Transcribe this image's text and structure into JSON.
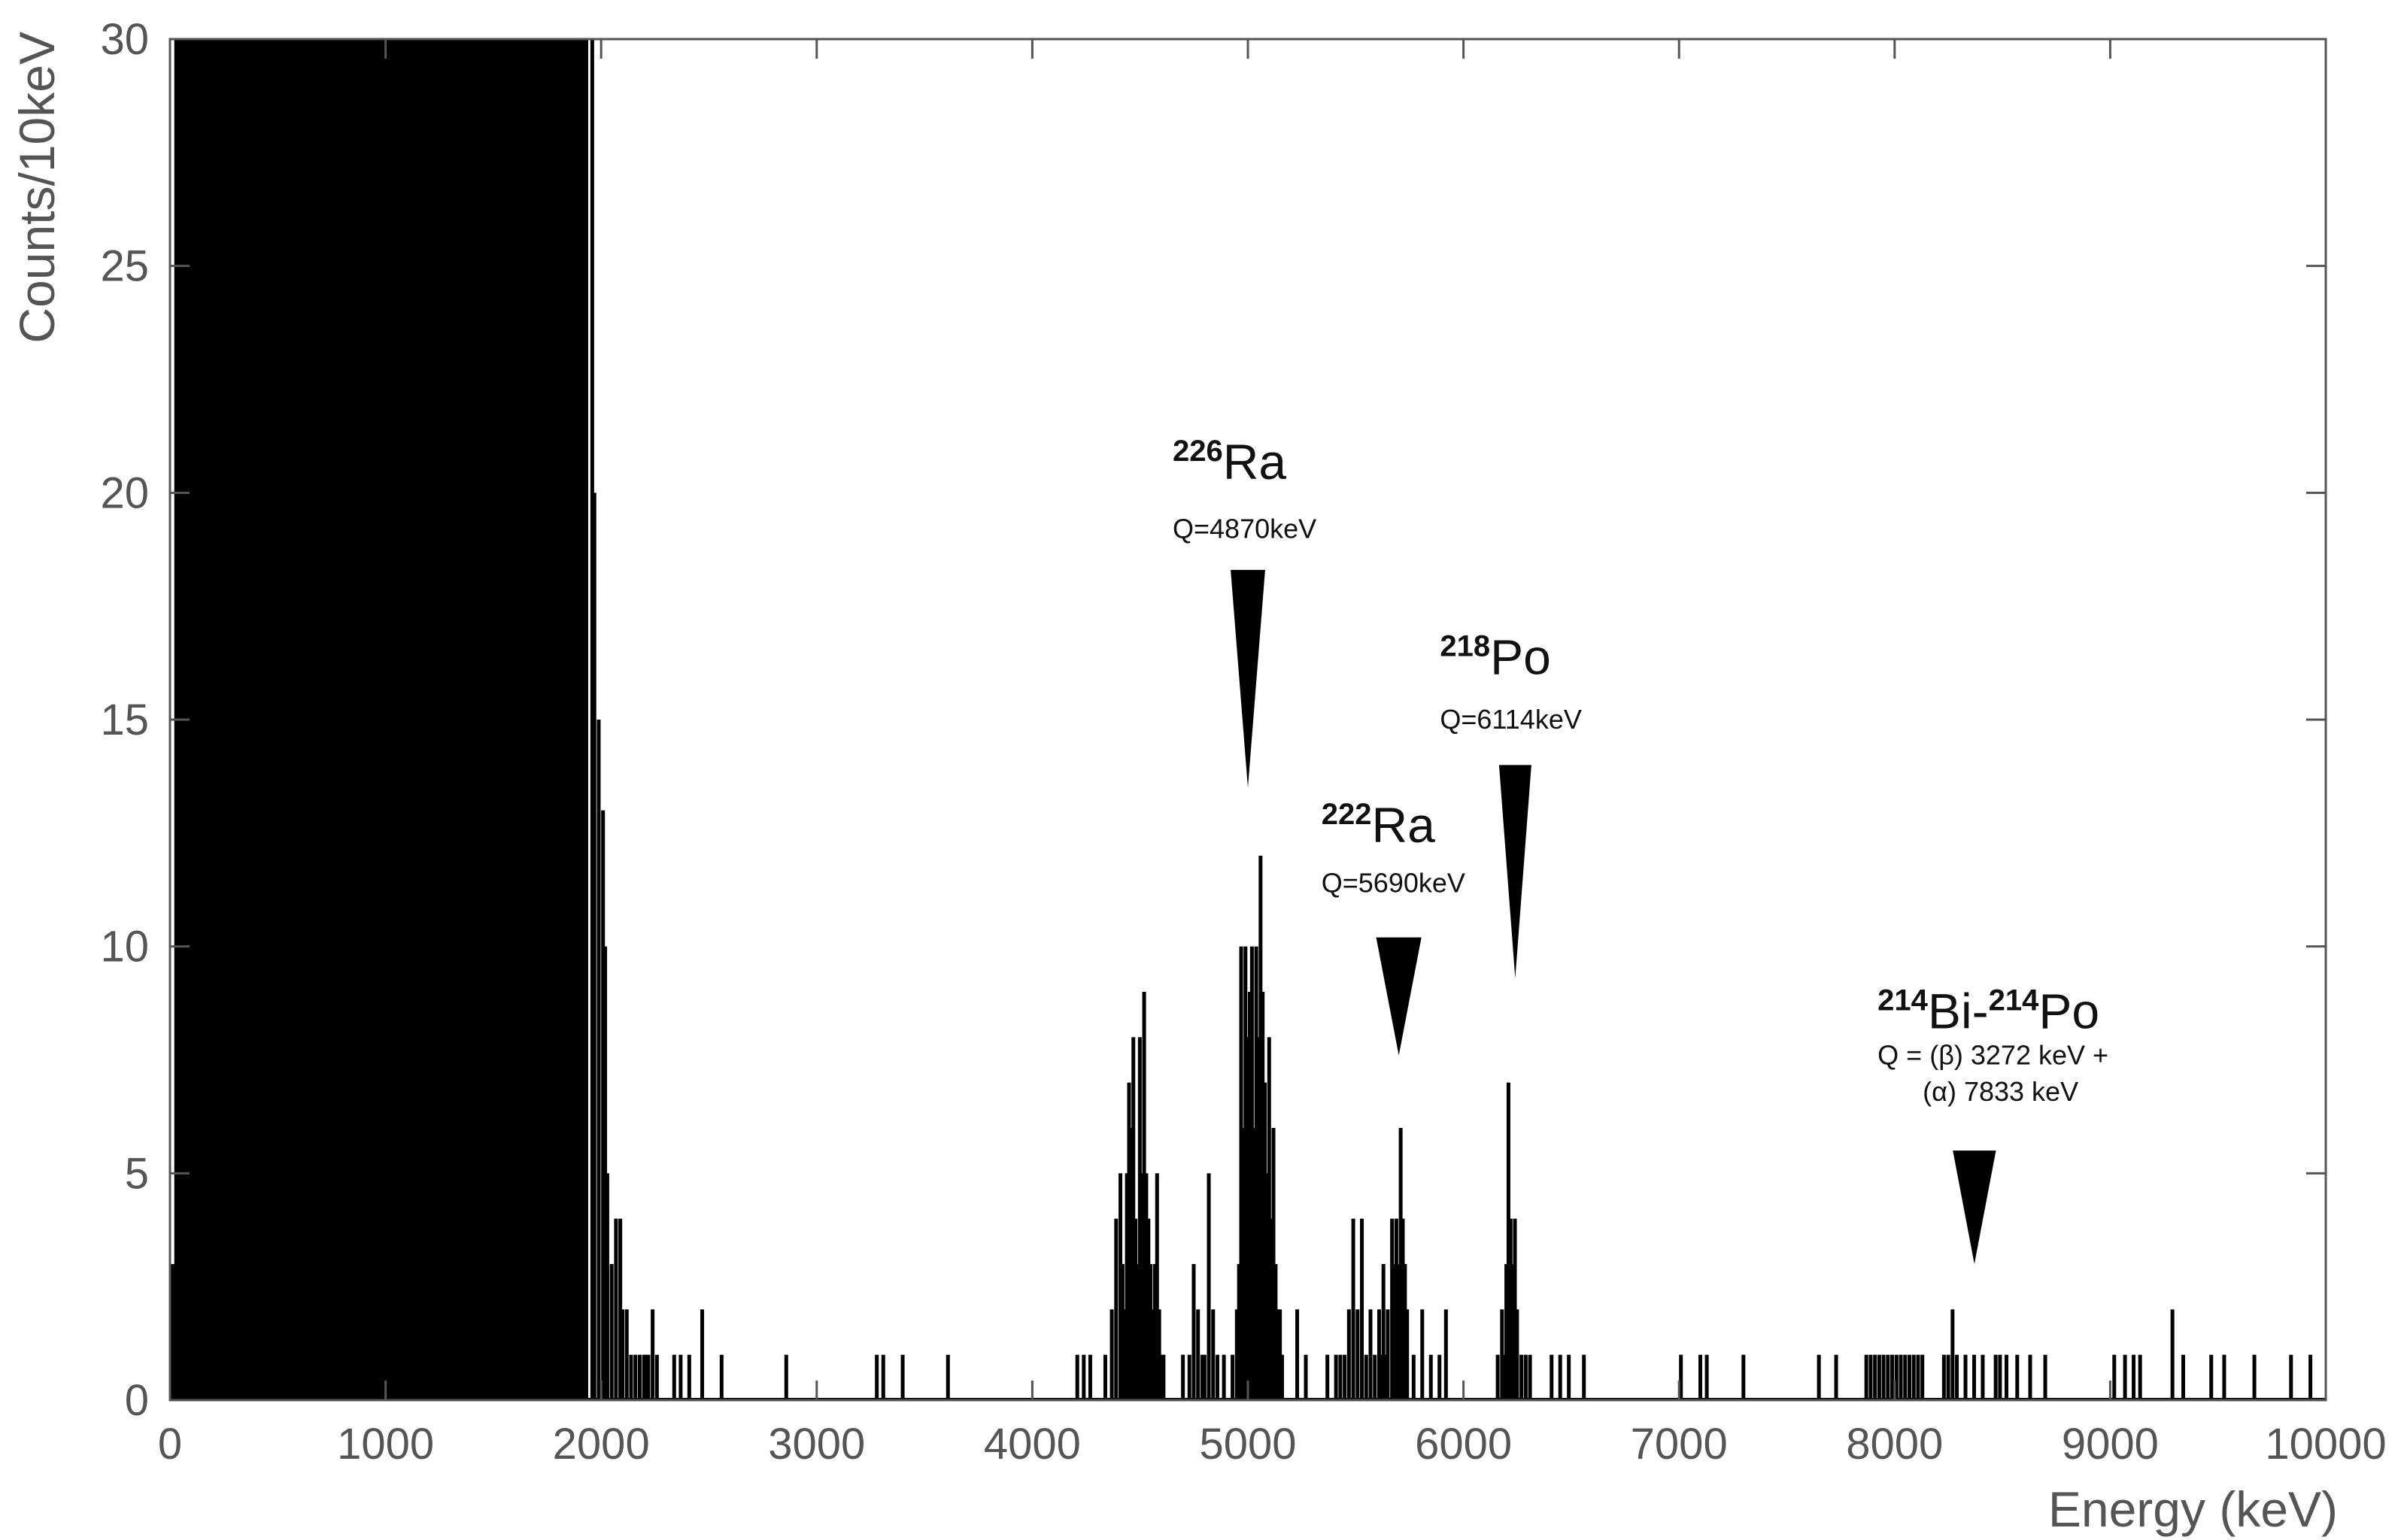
{
  "chart_data": {
    "type": "bar",
    "title": "",
    "xlabel": "Energy (keV)",
    "ylabel": "Counts/10keV",
    "xlim": [
      0,
      10000
    ],
    "ylim": [
      0,
      30
    ],
    "bin_width_keV": 10,
    "xticks": [
      0,
      1000,
      2000,
      3000,
      4000,
      5000,
      6000,
      7000,
      8000,
      9000,
      10000
    ],
    "yticks": [
      0,
      5,
      10,
      15,
      20,
      25,
      30
    ],
    "grid": false,
    "legend": "none",
    "color": "#000000",
    "saturated_region": {
      "x_start": 20,
      "x_end": 1940,
      "value": 30
    },
    "bins": [
      [
        0,
        3
      ],
      [
        10,
        3
      ],
      [
        1950,
        30
      ],
      [
        1960,
        20
      ],
      [
        1980,
        15
      ],
      [
        2000,
        13
      ],
      [
        2010,
        10
      ],
      [
        2020,
        5
      ],
      [
        2040,
        3
      ],
      [
        2060,
        4
      ],
      [
        2080,
        4
      ],
      [
        2090,
        2
      ],
      [
        2110,
        2
      ],
      [
        2130,
        1
      ],
      [
        2150,
        1
      ],
      [
        2170,
        1
      ],
      [
        2190,
        1
      ],
      [
        2200,
        1
      ],
      [
        2210,
        1
      ],
      [
        2230,
        2
      ],
      [
        2250,
        1
      ],
      [
        2330,
        1
      ],
      [
        2360,
        1
      ],
      [
        2400,
        1
      ],
      [
        2460,
        2
      ],
      [
        2550,
        1
      ],
      [
        2850,
        1
      ],
      [
        3270,
        1
      ],
      [
        3300,
        1
      ],
      [
        3390,
        1
      ],
      [
        3600,
        1
      ],
      [
        4200,
        1
      ],
      [
        4230,
        1
      ],
      [
        4260,
        1
      ],
      [
        4330,
        1
      ],
      [
        4360,
        2
      ],
      [
        4380,
        4
      ],
      [
        4400,
        5
      ],
      [
        4410,
        3
      ],
      [
        4420,
        2
      ],
      [
        4430,
        5
      ],
      [
        4440,
        7
      ],
      [
        4450,
        6
      ],
      [
        4460,
        8
      ],
      [
        4470,
        4
      ],
      [
        4480,
        3
      ],
      [
        4490,
        8
      ],
      [
        4500,
        5
      ],
      [
        4510,
        9
      ],
      [
        4520,
        5
      ],
      [
        4530,
        4
      ],
      [
        4540,
        3
      ],
      [
        4550,
        2
      ],
      [
        4560,
        3
      ],
      [
        4570,
        5
      ],
      [
        4580,
        2
      ],
      [
        4590,
        1
      ],
      [
        4600,
        1
      ],
      [
        4690,
        1
      ],
      [
        4720,
        1
      ],
      [
        4740,
        3
      ],
      [
        4760,
        2
      ],
      [
        4780,
        1
      ],
      [
        4790,
        1
      ],
      [
        4810,
        5
      ],
      [
        4830,
        2
      ],
      [
        4850,
        1
      ],
      [
        4880,
        1
      ],
      [
        4920,
        1
      ],
      [
        4940,
        2
      ],
      [
        4950,
        3
      ],
      [
        4960,
        10
      ],
      [
        4970,
        6
      ],
      [
        4980,
        10
      ],
      [
        4990,
        8
      ],
      [
        5000,
        9
      ],
      [
        5010,
        10
      ],
      [
        5020,
        6
      ],
      [
        5030,
        10
      ],
      [
        5040,
        8
      ],
      [
        5050,
        12
      ],
      [
        5060,
        9
      ],
      [
        5070,
        7
      ],
      [
        5080,
        5
      ],
      [
        5090,
        8
      ],
      [
        5100,
        4
      ],
      [
        5110,
        6
      ],
      [
        5120,
        3
      ],
      [
        5130,
        2
      ],
      [
        5140,
        2
      ],
      [
        5150,
        1
      ],
      [
        5220,
        2
      ],
      [
        5260,
        1
      ],
      [
        5360,
        1
      ],
      [
        5400,
        1
      ],
      [
        5420,
        1
      ],
      [
        5440,
        1
      ],
      [
        5460,
        2
      ],
      [
        5480,
        4
      ],
      [
        5500,
        2
      ],
      [
        5520,
        4
      ],
      [
        5540,
        1
      ],
      [
        5560,
        2
      ],
      [
        5580,
        1
      ],
      [
        5600,
        2
      ],
      [
        5610,
        1
      ],
      [
        5620,
        3
      ],
      [
        5630,
        1
      ],
      [
        5640,
        2
      ],
      [
        5660,
        4
      ],
      [
        5670,
        3
      ],
      [
        5680,
        4
      ],
      [
        5690,
        3
      ],
      [
        5700,
        6
      ],
      [
        5710,
        4
      ],
      [
        5720,
        3
      ],
      [
        5730,
        2
      ],
      [
        5760,
        1
      ],
      [
        5800,
        2
      ],
      [
        5840,
        1
      ],
      [
        5880,
        1
      ],
      [
        5910,
        2
      ],
      [
        6150,
        1
      ],
      [
        6170,
        2
      ],
      [
        6180,
        1
      ],
      [
        6190,
        3
      ],
      [
        6200,
        7
      ],
      [
        6210,
        4
      ],
      [
        6220,
        3
      ],
      [
        6230,
        4
      ],
      [
        6240,
        2
      ],
      [
        6260,
        1
      ],
      [
        6280,
        1
      ],
      [
        6300,
        1
      ],
      [
        6400,
        1
      ],
      [
        6440,
        1
      ],
      [
        6480,
        1
      ],
      [
        6550,
        1
      ],
      [
        7000,
        1
      ],
      [
        7090,
        1
      ],
      [
        7120,
        1
      ],
      [
        7290,
        1
      ],
      [
        7640,
        1
      ],
      [
        7720,
        1
      ],
      [
        7860,
        1
      ],
      [
        7880,
        1
      ],
      [
        7900,
        1
      ],
      [
        7920,
        1
      ],
      [
        7940,
        1
      ],
      [
        7960,
        1
      ],
      [
        7980,
        1
      ],
      [
        8000,
        1
      ],
      [
        8020,
        1
      ],
      [
        8040,
        1
      ],
      [
        8060,
        1
      ],
      [
        8080,
        1
      ],
      [
        8100,
        1
      ],
      [
        8120,
        1
      ],
      [
        8220,
        1
      ],
      [
        8240,
        1
      ],
      [
        8260,
        2
      ],
      [
        8280,
        1
      ],
      [
        8320,
        1
      ],
      [
        8360,
        1
      ],
      [
        8400,
        1
      ],
      [
        8460,
        1
      ],
      [
        8480,
        1
      ],
      [
        8510,
        1
      ],
      [
        8560,
        1
      ],
      [
        8620,
        1
      ],
      [
        8690,
        1
      ],
      [
        9010,
        1
      ],
      [
        9060,
        1
      ],
      [
        9100,
        1
      ],
      [
        9130,
        1
      ],
      [
        9280,
        2
      ],
      [
        9330,
        1
      ],
      [
        9460,
        1
      ],
      [
        9520,
        1
      ],
      [
        9660,
        1
      ],
      [
        9830,
        1
      ],
      [
        9920,
        1
      ]
    ],
    "annotations": [
      {
        "isotope_sup": "226",
        "isotope": "Ra",
        "q": "Q=4870keV",
        "x": 5000,
        "y_text": 20.3,
        "y_q": 19,
        "arrow": {
          "x": 5000,
          "y_top": 18.3,
          "y_tip": 13.5,
          "width_keV": 160
        }
      },
      {
        "isotope_sup": "218",
        "isotope": "Po",
        "q": "Q=6114keV",
        "x": 6240,
        "y_text": 16.0,
        "y_q": 14.8,
        "arrow": {
          "x": 6240,
          "y_top": 14.0,
          "y_tip": 9.3,
          "width_keV": 150
        }
      },
      {
        "isotope_sup": "222",
        "isotope": "Ra",
        "q": "Q=5690keV",
        "x": 5690,
        "y_text": 12.3,
        "y_q": 11.2,
        "arrow": {
          "x": 5700,
          "y_top": 10.2,
          "y_tip": 7.6,
          "width_keV": 210
        }
      },
      {
        "isotope_sup": "214",
        "isotope": "Bi-",
        "isotope_sup2": "214",
        "isotope2": "Po",
        "q": "Q = (β) 3272 keV +",
        "q2": "(α) 7833 keV",
        "x": 8270,
        "y_text": 8.2,
        "y_q": 7.4,
        "y_q2": 6.6,
        "arrow": {
          "x": 8370,
          "y_top": 5.5,
          "y_tip": 3.0,
          "width_keV": 200
        }
      }
    ]
  }
}
